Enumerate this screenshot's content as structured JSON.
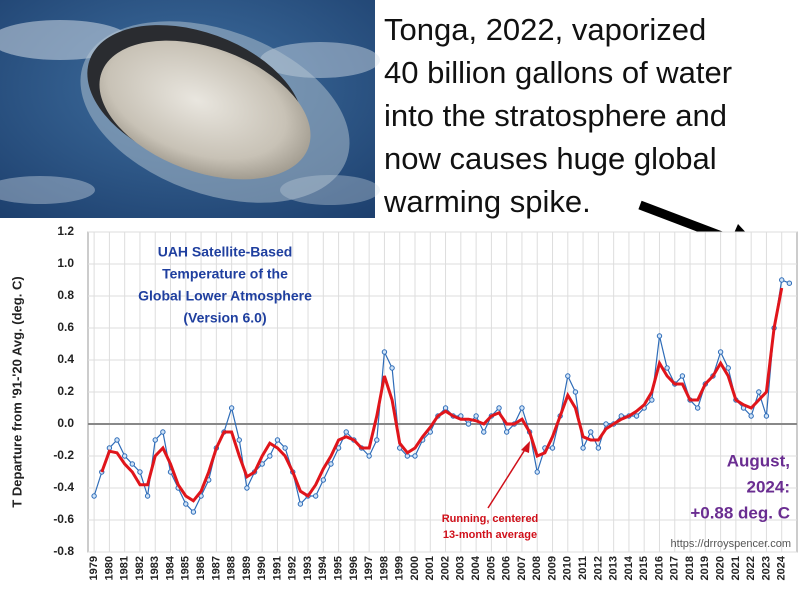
{
  "caption": {
    "lines": [
      "Tonga, 2022, vaporized",
      "40 billion gallons of water",
      "into the stratosphere and",
      "now causes huge global",
      "warming spike."
    ]
  },
  "chart_data": {
    "type": "line",
    "title_lines": [
      "UAH Satellite-Based",
      "Temperature of the",
      "Global Lower Atmosphere",
      "(Version 6.0)"
    ],
    "ylabel": "T Departure from '91-'20 Avg. (deg. C)",
    "annotations": {
      "latest": [
        "August,",
        "2024:",
        "+0.88 deg. C"
      ],
      "running": [
        "Running, centered",
        "13-month average"
      ],
      "source": "https://drroyspencer.com"
    },
    "x": [
      1979.0,
      1979.5,
      1980.0,
      1980.5,
      1981.0,
      1981.5,
      1982.0,
      1982.5,
      1983.0,
      1983.5,
      1984.0,
      1984.5,
      1985.0,
      1985.5,
      1986.0,
      1986.5,
      1987.0,
      1987.5,
      1988.0,
      1988.5,
      1989.0,
      1989.5,
      1990.0,
      1990.5,
      1991.0,
      1991.5,
      1992.0,
      1992.5,
      1993.0,
      1993.5,
      1994.0,
      1994.5,
      1995.0,
      1995.5,
      1996.0,
      1996.5,
      1997.0,
      1997.5,
      1998.0,
      1998.5,
      1999.0,
      1999.5,
      2000.0,
      2000.5,
      2001.0,
      2001.5,
      2002.0,
      2002.5,
      2003.0,
      2003.5,
      2004.0,
      2004.5,
      2005.0,
      2005.5,
      2006.0,
      2006.5,
      2007.0,
      2007.5,
      2008.0,
      2008.5,
      2009.0,
      2009.5,
      2010.0,
      2010.5,
      2011.0,
      2011.5,
      2012.0,
      2012.5,
      2013.0,
      2013.5,
      2014.0,
      2014.5,
      2015.0,
      2015.5,
      2016.0,
      2016.5,
      2017.0,
      2017.5,
      2018.0,
      2018.5,
      2019.0,
      2019.5,
      2020.0,
      2020.5,
      2021.0,
      2021.5,
      2022.0,
      2022.5,
      2023.0,
      2023.5,
      2024.0,
      2024.5
    ],
    "series": [
      {
        "color": "#2e6cb8",
        "markers": true,
        "values": [
          -0.45,
          -0.3,
          -0.15,
          -0.1,
          -0.2,
          -0.25,
          -0.3,
          -0.45,
          -0.1,
          -0.05,
          -0.3,
          -0.4,
          -0.5,
          -0.55,
          -0.45,
          -0.35,
          -0.15,
          -0.05,
          0.1,
          -0.1,
          -0.4,
          -0.3,
          -0.25,
          -0.2,
          -0.1,
          -0.15,
          -0.3,
          -0.5,
          -0.45,
          -0.45,
          -0.35,
          -0.25,
          -0.15,
          -0.05,
          -0.1,
          -0.15,
          -0.2,
          -0.1,
          0.45,
          0.35,
          -0.15,
          -0.2,
          -0.2,
          -0.1,
          -0.05,
          0.05,
          0.1,
          0.05,
          0.05,
          0.0,
          0.05,
          -0.05,
          0.05,
          0.1,
          -0.05,
          0.0,
          0.1,
          -0.05,
          -0.3,
          -0.15,
          -0.15,
          0.05,
          0.3,
          0.2,
          -0.15,
          -0.05,
          -0.15,
          0.0,
          0.0,
          0.05,
          0.05,
          0.05,
          0.1,
          0.15,
          0.55,
          0.35,
          0.25,
          0.3,
          0.15,
          0.1,
          0.25,
          0.3,
          0.45,
          0.35,
          0.15,
          0.1,
          0.05,
          0.2,
          0.05,
          0.6,
          0.9,
          0.88
        ]
      },
      {
        "color": "#e0151b",
        "markers": false,
        "values": [
          null,
          -0.3,
          -0.17,
          -0.18,
          -0.25,
          -0.3,
          -0.38,
          -0.38,
          -0.2,
          -0.15,
          -0.25,
          -0.38,
          -0.45,
          -0.48,
          -0.42,
          -0.3,
          -0.15,
          -0.05,
          -0.05,
          -0.2,
          -0.33,
          -0.3,
          -0.2,
          -0.12,
          -0.15,
          -0.2,
          -0.3,
          -0.42,
          -0.45,
          -0.38,
          -0.28,
          -0.2,
          -0.1,
          -0.08,
          -0.1,
          -0.15,
          -0.15,
          0.05,
          0.3,
          0.15,
          -0.12,
          -0.18,
          -0.15,
          -0.08,
          -0.02,
          0.05,
          0.08,
          0.05,
          0.03,
          0.03,
          0.02,
          0.0,
          0.05,
          0.07,
          0.0,
          0.0,
          0.03,
          -0.05,
          -0.2,
          -0.18,
          -0.08,
          0.05,
          0.18,
          0.1,
          -0.08,
          -0.1,
          -0.1,
          -0.03,
          0.0,
          0.03,
          0.05,
          0.08,
          0.12,
          0.2,
          0.38,
          0.3,
          0.25,
          0.25,
          0.15,
          0.15,
          0.25,
          0.3,
          0.38,
          0.3,
          0.15,
          0.12,
          0.1,
          0.15,
          0.2,
          0.6,
          0.85,
          null
        ]
      }
    ],
    "xlim": [
      1978.6,
      2025.0
    ],
    "xticks": [
      1979,
      1980,
      1981,
      1982,
      1983,
      1984,
      1985,
      1986,
      1987,
      1988,
      1989,
      1990,
      1991,
      1992,
      1993,
      1994,
      1995,
      1996,
      1997,
      1998,
      1999,
      2000,
      2001,
      2002,
      2003,
      2004,
      2005,
      2006,
      2007,
      2008,
      2009,
      2010,
      2011,
      2012,
      2013,
      2014,
      2015,
      2016,
      2017,
      2018,
      2019,
      2020,
      2021,
      2022,
      2023,
      2024
    ],
    "ylim": [
      -0.8,
      1.2
    ],
    "yticks": [
      {
        "value": -0.8,
        "label": "-0.8"
      },
      -0.6,
      -0.4,
      -0.2,
      {
        "value": 0,
        "label": "0.0"
      },
      0.2,
      0.4,
      0.6,
      0.8,
      {
        "value": 1,
        "label": "1.0"
      },
      1.2
    ],
    "grid": true
  }
}
